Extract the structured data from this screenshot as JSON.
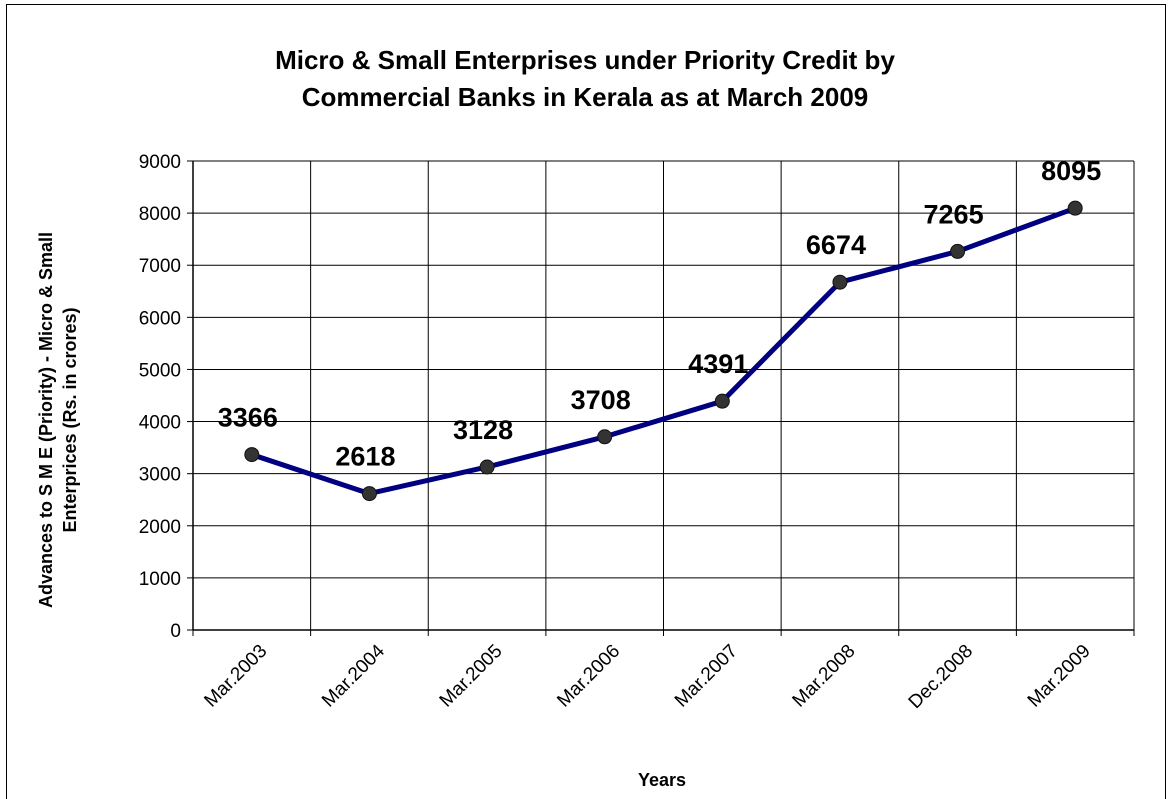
{
  "chart_data": {
    "type": "line",
    "title_lines": [
      "Micro & Small Enterprises under Priority Credit by",
      "Commercial Banks in Kerala as at March 2009"
    ],
    "ylabel_lines": [
      "Advances to S M E (Priority) - Micro & Small",
      "Enterprices (Rs. in crores)"
    ],
    "xlabel": "Years",
    "categories": [
      "Mar.2003",
      "Mar.2004",
      "Mar.2005",
      "Mar.2006",
      "Mar.2007",
      "Mar.2008",
      "Dec.2008",
      "Mar.2009"
    ],
    "series": [
      {
        "values": [
          3366,
          2618,
          3128,
          3708,
          4391,
          6674,
          7265,
          8095
        ]
      }
    ],
    "ylim": [
      0,
      9000
    ],
    "ytick_step": 1000,
    "grid": true,
    "legend": "none",
    "colors": {
      "line": "#000080",
      "marker": "#333333",
      "grid": "#000000"
    }
  }
}
